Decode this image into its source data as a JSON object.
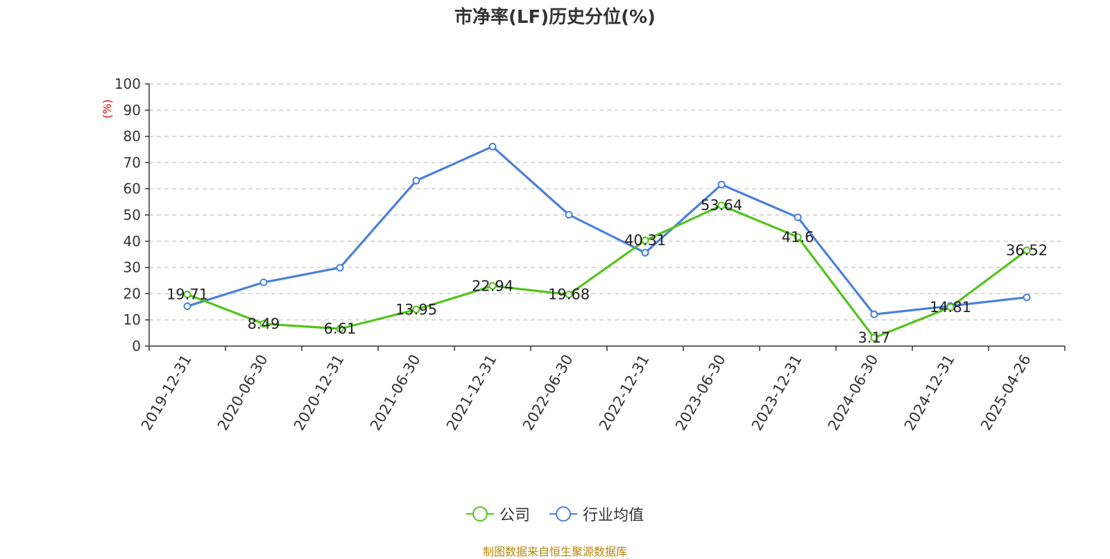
{
  "chart_data": {
    "type": "line",
    "title": "市净率(LF)历史分位(%)",
    "ylabel": "(%)",
    "ylim": [
      0,
      100
    ],
    "yticks": [
      0,
      10,
      20,
      30,
      40,
      50,
      60,
      70,
      80,
      90,
      100
    ],
    "grid": true,
    "legend_position": "bottom",
    "categories": [
      "2019-12-31",
      "2020-06-30",
      "2020-12-31",
      "2021-06-30",
      "2021-12-31",
      "2022-06-30",
      "2022-12-31",
      "2023-06-30",
      "2023-12-31",
      "2024-06-30",
      "2024-12-31",
      "2025-04-26"
    ],
    "series": [
      {
        "name": "公司",
        "color": "#52c41a",
        "values": [
          19.71,
          8.49,
          6.61,
          13.95,
          22.94,
          19.68,
          40.31,
          53.64,
          41.6,
          3.17,
          14.81,
          36.52
        ],
        "labels": [
          "19.71",
          "8.49",
          "6.61",
          "13.95",
          "22.94",
          "19.68",
          "40.31",
          "53.64",
          "41.6",
          "3.17",
          "14.81",
          "36.52"
        ]
      },
      {
        "name": "行业均值",
        "color": "#4a7fdc",
        "values": [
          15.2,
          24.3,
          29.9,
          63.1,
          76.1,
          50.1,
          35.6,
          61.6,
          49.1,
          12.1,
          15.3,
          18.6
        ]
      }
    ]
  },
  "source": "制图数据来自恒生聚源数据库"
}
